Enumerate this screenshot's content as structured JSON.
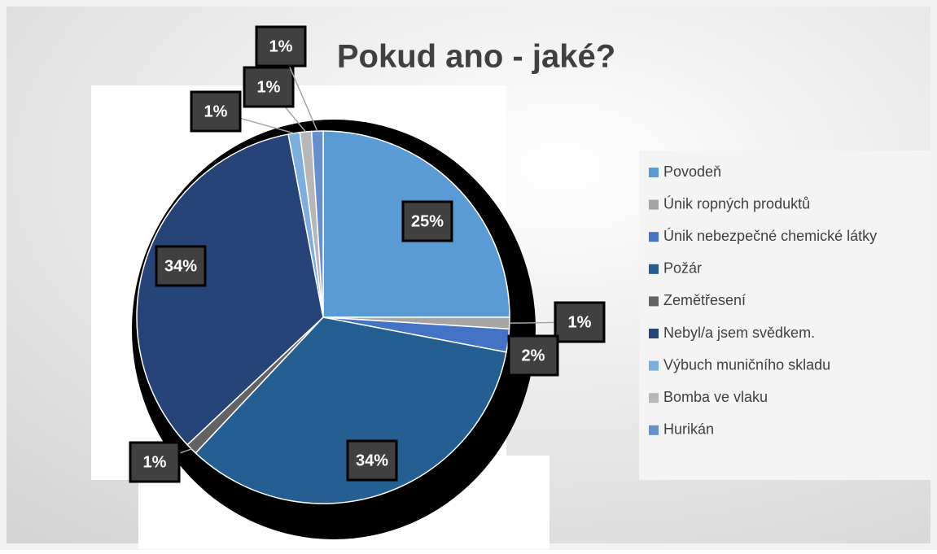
{
  "chart_data": {
    "type": "pie",
    "title": "Pokud ano - jaké?",
    "categories": [
      "Povodeň",
      "Únik ropných produktů",
      "Únik nebezpečné chemické látky",
      "Požár",
      "Zemětřesení",
      "Nebyl/a jsem svědkem.",
      "Výbuch muničního skladu",
      "Bomba ve vlaku",
      "Hurikán"
    ],
    "values": [
      25,
      1,
      2,
      34,
      1,
      34,
      1,
      1,
      1
    ],
    "value_labels": [
      "25%",
      "1%",
      "2%",
      "34%",
      "1%",
      "34%",
      "1%",
      "1%",
      "1%"
    ],
    "colors": [
      "#5b9bd5",
      "#a5a5a5",
      "#4472c4",
      "#255e91",
      "#636363",
      "#264478",
      "#7cafdd",
      "#b7b7b7",
      "#698ed0"
    ],
    "legend": "right"
  }
}
